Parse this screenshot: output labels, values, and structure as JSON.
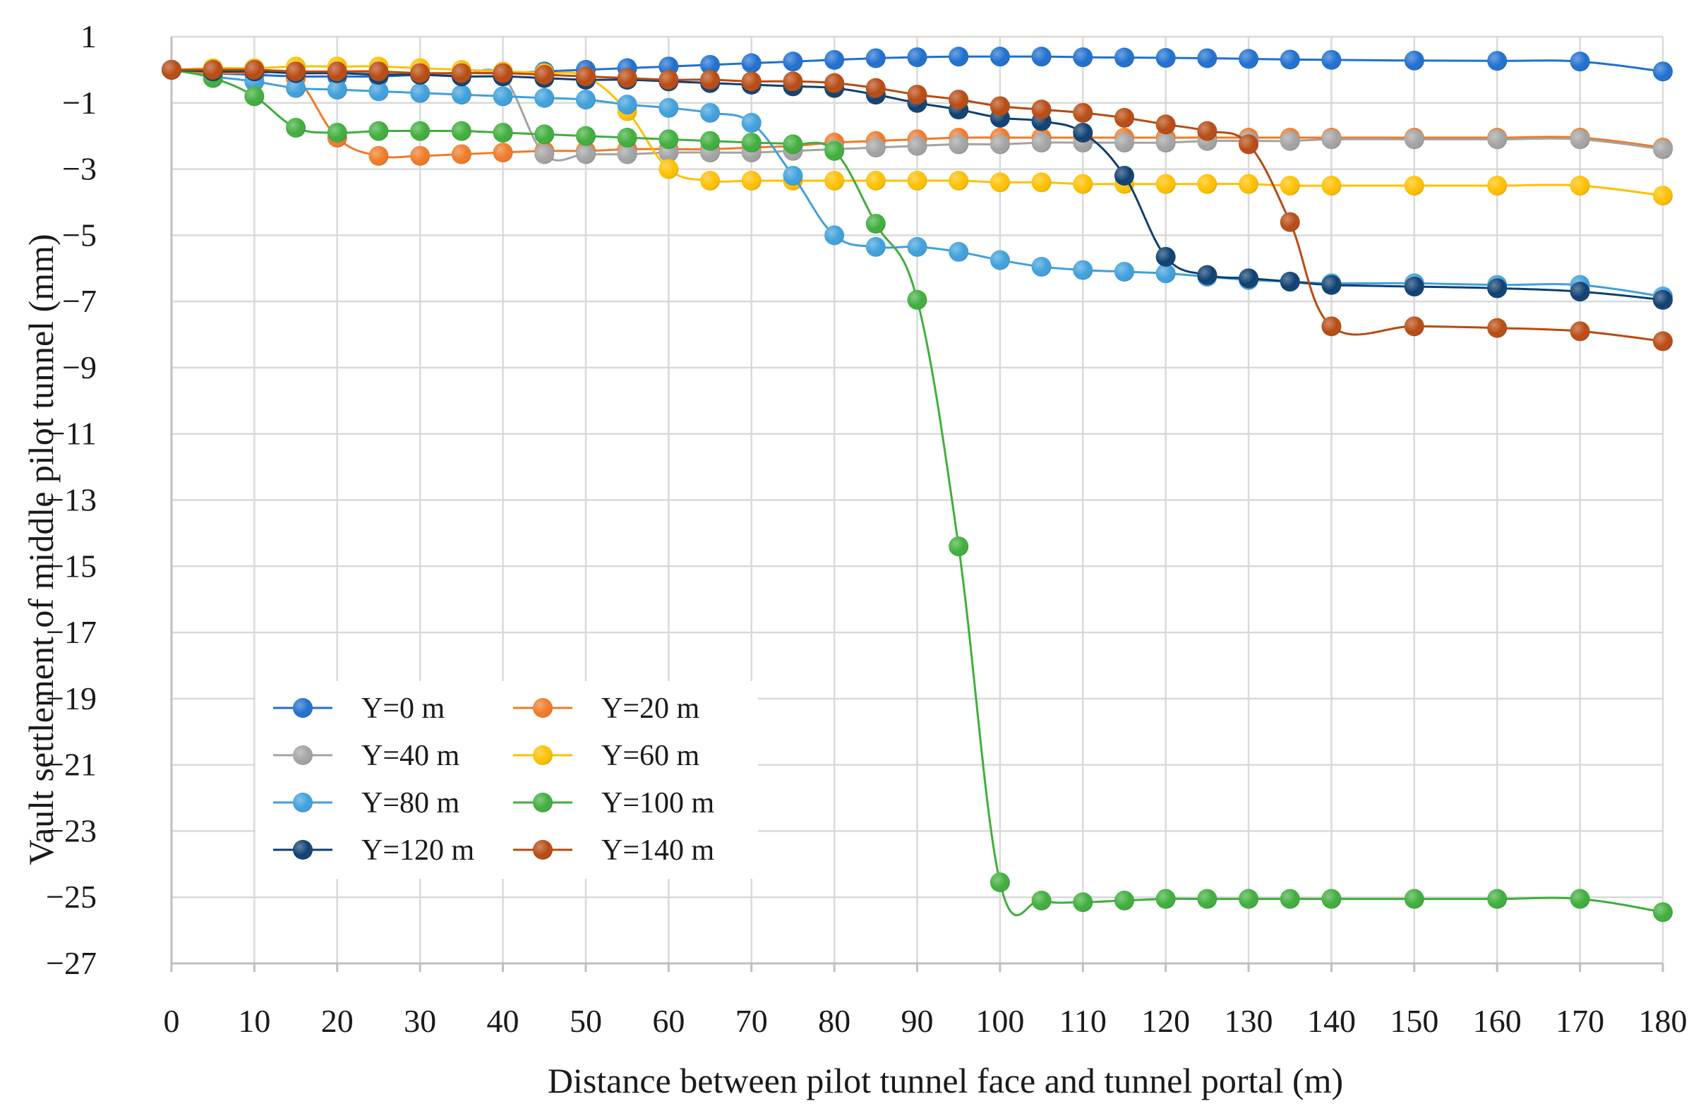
{
  "chart_data": {
    "type": "line",
    "title": "",
    "xlabel": "Distance between pilot tunnel face and tunnel portal (m)",
    "ylabel": "Vault settlement of middle pilot tunnel (mm)",
    "xlim": [
      0,
      180
    ],
    "ylim": [
      -27,
      1
    ],
    "xticks": [
      0,
      10,
      20,
      30,
      40,
      50,
      60,
      70,
      80,
      90,
      100,
      110,
      120,
      130,
      140,
      150,
      160,
      170,
      180
    ],
    "xtick_labels": [
      "0",
      "10",
      "20",
      "30",
      "40",
      "50",
      "60",
      "70",
      "80",
      "90",
      "100",
      "110",
      "120",
      "130",
      "140",
      "150",
      "160",
      "170",
      "180"
    ],
    "yticks": [
      1,
      -1,
      -3,
      -5,
      -7,
      -9,
      -11,
      -13,
      -15,
      -17,
      -19,
      -21,
      -23,
      -25,
      -27
    ],
    "ytick_labels": [
      "1",
      "−1",
      "−3",
      "−5",
      "−7",
      "−9",
      "−11",
      "−13",
      "−15",
      "−17",
      "−19",
      "−21",
      "−23",
      "−25",
      "−27"
    ],
    "grid": true,
    "legend": {
      "placement": "bottom-left",
      "columns": 2
    },
    "series": [
      {
        "name": "Y=0 m",
        "color": "#1f6fcf",
        "x": [
          0,
          5,
          10,
          15,
          20,
          25,
          30,
          35,
          40,
          45,
          50,
          55,
          60,
          65,
          70,
          75,
          80,
          85,
          90,
          95,
          100,
          105,
          110,
          115,
          120,
          125,
          130,
          135,
          140,
          150,
          160,
          170,
          180
        ],
        "y": [
          0,
          -0.1,
          -0.15,
          -0.2,
          -0.2,
          -0.2,
          -0.15,
          -0.1,
          -0.1,
          -0.05,
          0,
          0.05,
          0.1,
          0.15,
          0.2,
          0.25,
          0.3,
          0.35,
          0.38,
          0.4,
          0.4,
          0.4,
          0.38,
          0.37,
          0.36,
          0.35,
          0.33,
          0.31,
          0.3,
          0.28,
          0.27,
          0.25,
          -0.05
        ]
      },
      {
        "name": "Y=20 m",
        "color": "#f07a28",
        "x": [
          0,
          5,
          10,
          15,
          20,
          25,
          30,
          35,
          40,
          45,
          50,
          55,
          60,
          65,
          70,
          75,
          80,
          85,
          90,
          95,
          100,
          105,
          110,
          115,
          120,
          125,
          130,
          135,
          140,
          150,
          160,
          170,
          180
        ],
        "y": [
          0,
          -0.1,
          -0.1,
          -0.25,
          -2.05,
          -2.6,
          -2.6,
          -2.55,
          -2.5,
          -2.45,
          -2.45,
          -2.4,
          -2.4,
          -2.4,
          -2.35,
          -2.3,
          -2.2,
          -2.15,
          -2.1,
          -2.05,
          -2.05,
          -2.05,
          -2.05,
          -2.05,
          -2.05,
          -2.05,
          -2.05,
          -2.05,
          -2.05,
          -2.05,
          -2.05,
          -2.05,
          -2.35
        ]
      },
      {
        "name": "Y=40 m",
        "color": "#a3a3a3",
        "x": [
          0,
          5,
          10,
          15,
          20,
          25,
          30,
          35,
          40,
          45,
          50,
          55,
          60,
          65,
          70,
          75,
          80,
          85,
          90,
          95,
          100,
          105,
          110,
          115,
          120,
          125,
          130,
          135,
          140,
          150,
          160,
          170,
          180
        ],
        "y": [
          0,
          -0.05,
          -0.05,
          -0.1,
          -0.1,
          -0.1,
          -0.15,
          -0.15,
          -0.2,
          -2.55,
          -2.55,
          -2.55,
          -2.5,
          -2.5,
          -2.5,
          -2.45,
          -2.4,
          -2.35,
          -2.3,
          -2.25,
          -2.25,
          -2.2,
          -2.2,
          -2.2,
          -2.2,
          -2.15,
          -2.15,
          -2.15,
          -2.1,
          -2.1,
          -2.1,
          -2.1,
          -2.4
        ]
      },
      {
        "name": "Y=60 m",
        "color": "#ffc000",
        "x": [
          0,
          5,
          10,
          15,
          20,
          25,
          30,
          35,
          40,
          45,
          50,
          55,
          60,
          65,
          70,
          75,
          80,
          85,
          90,
          95,
          100,
          105,
          110,
          115,
          120,
          125,
          130,
          135,
          140,
          150,
          160,
          170,
          180
        ],
        "y": [
          0,
          0.05,
          0.05,
          0.1,
          0.1,
          0.1,
          0.05,
          0,
          -0.05,
          -0.1,
          -0.2,
          -1.25,
          -3.0,
          -3.35,
          -3.35,
          -3.35,
          -3.35,
          -3.35,
          -3.35,
          -3.35,
          -3.4,
          -3.4,
          -3.45,
          -3.45,
          -3.45,
          -3.45,
          -3.45,
          -3.5,
          -3.5,
          -3.5,
          -3.5,
          -3.5,
          -3.8
        ]
      },
      {
        "name": "Y=80 m",
        "color": "#3fa0dc",
        "x": [
          0,
          5,
          10,
          15,
          20,
          25,
          30,
          35,
          40,
          45,
          50,
          55,
          60,
          65,
          70,
          75,
          80,
          85,
          90,
          95,
          100,
          105,
          110,
          115,
          120,
          125,
          130,
          135,
          140,
          150,
          160,
          170,
          180
        ],
        "y": [
          0,
          -0.2,
          -0.35,
          -0.55,
          -0.6,
          -0.65,
          -0.7,
          -0.75,
          -0.8,
          -0.85,
          -0.9,
          -1.05,
          -1.15,
          -1.3,
          -1.6,
          -3.2,
          -5.0,
          -5.35,
          -5.35,
          -5.5,
          -5.75,
          -5.95,
          -6.05,
          -6.1,
          -6.15,
          -6.25,
          -6.35,
          -6.4,
          -6.45,
          -6.45,
          -6.5,
          -6.5,
          -6.85
        ]
      },
      {
        "name": "Y=100 m",
        "color": "#3fae3c",
        "x": [
          0,
          5,
          10,
          15,
          20,
          25,
          30,
          35,
          40,
          45,
          50,
          55,
          60,
          65,
          70,
          75,
          80,
          85,
          90,
          95,
          100,
          105,
          110,
          115,
          120,
          125,
          130,
          135,
          140,
          150,
          160,
          170,
          180
        ],
        "y": [
          0,
          -0.25,
          -0.8,
          -1.75,
          -1.9,
          -1.85,
          -1.85,
          -1.85,
          -1.9,
          -1.95,
          -2.0,
          -2.05,
          -2.1,
          -2.15,
          -2.2,
          -2.25,
          -2.45,
          -4.65,
          -6.95,
          -14.4,
          -24.55,
          -25.1,
          -25.15,
          -25.1,
          -25.05,
          -25.05,
          -25.05,
          -25.05,
          -25.05,
          -25.05,
          -25.05,
          -25.05,
          -25.45
        ]
      },
      {
        "name": "Y=120 m",
        "color": "#0e3f70",
        "x": [
          0,
          5,
          10,
          15,
          20,
          25,
          30,
          35,
          40,
          45,
          50,
          55,
          60,
          65,
          70,
          75,
          80,
          85,
          90,
          95,
          100,
          105,
          110,
          115,
          120,
          125,
          130,
          135,
          140,
          150,
          160,
          170,
          180
        ],
        "y": [
          0,
          -0.05,
          -0.05,
          -0.1,
          -0.1,
          -0.15,
          -0.15,
          -0.2,
          -0.2,
          -0.25,
          -0.3,
          -0.3,
          -0.35,
          -0.4,
          -0.45,
          -0.5,
          -0.55,
          -0.75,
          -1.0,
          -1.2,
          -1.45,
          -1.55,
          -1.9,
          -3.2,
          -5.65,
          -6.2,
          -6.3,
          -6.4,
          -6.5,
          -6.55,
          -6.6,
          -6.7,
          -6.95
        ]
      },
      {
        "name": "Y=140 m",
        "color": "#b84a12",
        "x": [
          0,
          5,
          10,
          15,
          20,
          25,
          30,
          35,
          40,
          45,
          50,
          55,
          60,
          65,
          70,
          75,
          80,
          85,
          90,
          95,
          100,
          105,
          110,
          115,
          120,
          125,
          130,
          135,
          140,
          150,
          160,
          170,
          180
        ],
        "y": [
          0,
          0,
          0,
          -0.05,
          -0.05,
          -0.05,
          -0.1,
          -0.1,
          -0.1,
          -0.15,
          -0.2,
          -0.25,
          -0.3,
          -0.3,
          -0.35,
          -0.35,
          -0.4,
          -0.55,
          -0.75,
          -0.9,
          -1.1,
          -1.2,
          -1.3,
          -1.45,
          -1.65,
          -1.85,
          -2.25,
          -4.6,
          -7.75,
          -7.75,
          -7.8,
          -7.9,
          -8.2
        ]
      }
    ]
  }
}
